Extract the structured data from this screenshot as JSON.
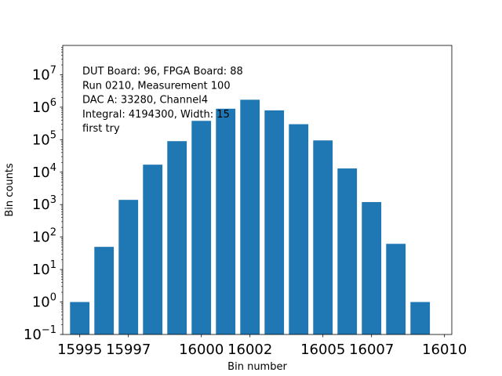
{
  "chart_data": {
    "type": "bar",
    "xlabel": "Bin number",
    "ylabel": "Bin counts",
    "y_scale": "log",
    "ylim": [
      0.1,
      80000000
    ],
    "xlim": [
      15994.3,
      16010.3
    ],
    "grid": false,
    "bar_color": "#1f77b4",
    "x_ticks": [
      {
        "value": 15995,
        "label": "15995"
      },
      {
        "value": 15997,
        "label": "15997"
      },
      {
        "value": 16000,
        "label": "16000"
      },
      {
        "value": 16002,
        "label": "16002"
      },
      {
        "value": 16005,
        "label": "16005"
      },
      {
        "value": 16007,
        "label": "16007"
      },
      {
        "value": 16010,
        "label": "16010"
      }
    ],
    "y_ticks": [
      {
        "value": 0.1,
        "base": "10",
        "exp": "−1"
      },
      {
        "value": 1,
        "base": "10",
        "exp": "0"
      },
      {
        "value": 10,
        "base": "10",
        "exp": "1"
      },
      {
        "value": 100,
        "base": "10",
        "exp": "2"
      },
      {
        "value": 1000,
        "base": "10",
        "exp": "3"
      },
      {
        "value": 10000,
        "base": "10",
        "exp": "4"
      },
      {
        "value": 100000,
        "base": "10",
        "exp": "5"
      },
      {
        "value": 1000000,
        "base": "10",
        "exp": "6"
      },
      {
        "value": 10000000,
        "base": "10",
        "exp": "7"
      }
    ],
    "bars": [
      {
        "x": 15995.0,
        "value": 1
      },
      {
        "x": 15996.0,
        "value": 50
      },
      {
        "x": 15997.0,
        "value": 1400
      },
      {
        "x": 15998.0,
        "value": 17000
      },
      {
        "x": 15999.0,
        "value": 90000
      },
      {
        "x": 16000.0,
        "value": 380000
      },
      {
        "x": 16001.0,
        "value": 900000
      },
      {
        "x": 16002.0,
        "value": 1700000
      },
      {
        "x": 16003.0,
        "value": 800000
      },
      {
        "x": 16004.0,
        "value": 300000
      },
      {
        "x": 16005.0,
        "value": 95000
      },
      {
        "x": 16006.0,
        "value": 13000
      },
      {
        "x": 16007.0,
        "value": 1200
      },
      {
        "x": 16008.0,
        "value": 62
      },
      {
        "x": 16009.0,
        "value": 1
      }
    ],
    "annotation_lines": [
      "DUT Board: 96, FPGA Board: 88",
      "Run 0210, Measurement 100",
      "DAC A: 33280, Channel4",
      "Integral: 4194300, Width: 15",
      "first try"
    ]
  }
}
